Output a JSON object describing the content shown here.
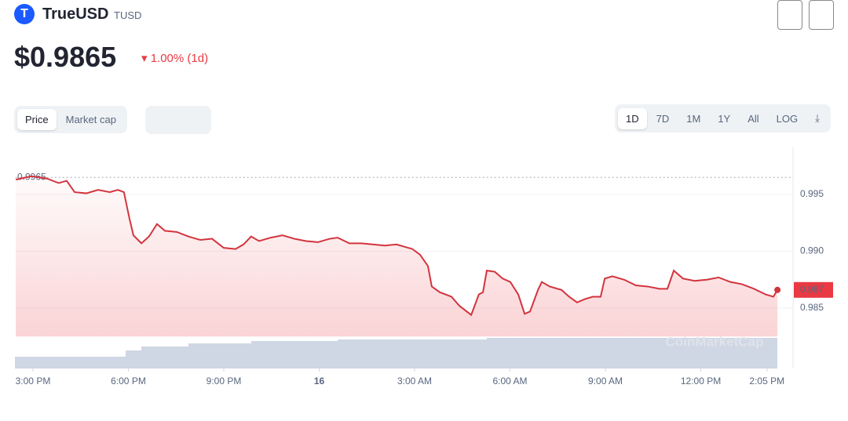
{
  "header": {
    "name": "TrueUSD",
    "symbol": "TUSD",
    "price": "$0.9865",
    "change": "1.00% (1d)"
  },
  "controls": {
    "metric": [
      "Price",
      "Market cap"
    ],
    "ranges": [
      "1D",
      "7D",
      "1M",
      "1Y",
      "All"
    ],
    "log": "LOG"
  },
  "chart_data": {
    "type": "line",
    "color": "#d3343d",
    "watermark": "CoinMarketCap",
    "x": [
      -0.54,
      -0.05,
      0.44,
      0.81,
      1.06,
      1.31,
      1.68,
      2.05,
      2.42,
      2.67,
      2.86,
      3.04,
      3.16,
      3.41,
      3.65,
      3.9,
      4.15,
      4.52,
      4.89,
      5.26,
      5.63,
      6.0,
      6.37,
      6.62,
      6.86,
      7.11,
      7.48,
      7.85,
      8.22,
      8.59,
      8.96,
      9.33,
      9.58,
      9.95,
      10.32,
      10.69,
      11.06,
      11.43,
      11.68,
      11.93,
      12.17,
      12.42,
      12.54,
      12.79,
      13.16,
      13.41,
      13.78,
      14.02,
      14.15,
      14.27,
      14.52,
      14.77,
      15.01,
      15.26,
      15.46,
      15.63,
      15.88,
      16.0,
      16.25,
      16.62,
      16.86,
      17.11,
      17.36,
      17.6,
      17.85,
      17.98,
      18.22,
      18.59,
      18.96,
      19.33,
      19.7,
      19.95,
      20.15,
      20.44,
      20.81,
      21.19,
      21.56,
      21.93,
      22.3,
      22.67,
      23.04,
      23.28,
      23.41
    ],
    "values": [
      0.9963,
      0.9966,
      0.9964,
      0.996,
      0.9962,
      0.9952,
      0.9951,
      0.9954,
      0.9952,
      0.9954,
      0.9952,
      0.9928,
      0.9914,
      0.9907,
      0.9913,
      0.9924,
      0.9918,
      0.9917,
      0.9913,
      0.991,
      0.9911,
      0.9903,
      0.9902,
      0.9906,
      0.9913,
      0.9909,
      0.9912,
      0.9914,
      0.9911,
      0.9909,
      0.9908,
      0.9911,
      0.9912,
      0.9907,
      0.9907,
      0.9906,
      0.9905,
      0.9906,
      0.9904,
      0.9902,
      0.9897,
      0.9887,
      0.9869,
      0.9864,
      0.986,
      0.9852,
      0.9844,
      0.9862,
      0.9864,
      0.9883,
      0.9882,
      0.9876,
      0.9873,
      0.9862,
      0.9845,
      0.9847,
      0.9866,
      0.9873,
      0.9869,
      0.9866,
      0.986,
      0.9855,
      0.9858,
      0.986,
      0.986,
      0.9876,
      0.9878,
      0.9875,
      0.987,
      0.9869,
      0.9867,
      0.9867,
      0.9883,
      0.9876,
      0.9874,
      0.9875,
      0.9877,
      0.9873,
      0.9871,
      0.9867,
      0.9862,
      0.986,
      0.9866
    ],
    "xlim": [
      -0.55,
      23.9
    ],
    "ylim": [
      0.9825,
      0.9992
    ],
    "xticks": [
      {
        "value": 0,
        "label": "3:00 PM"
      },
      {
        "value": 3,
        "label": "6:00 PM"
      },
      {
        "value": 6,
        "label": "9:00 PM"
      },
      {
        "value": 9,
        "label": "16"
      },
      {
        "value": 12,
        "label": "3:00 AM"
      },
      {
        "value": 15,
        "label": "6:00 AM"
      },
      {
        "value": 18,
        "label": "9:00 AM"
      },
      {
        "value": 21,
        "label": "12:00 PM"
      },
      {
        "value": 23.08,
        "label": "2:05 PM"
      }
    ],
    "yticks": [
      0.985,
      {
        "value": 0.99,
        "label": "0.990"
      },
      0.995
    ],
    "open_line": {
      "value": 0.9965,
      "label": "0.9965"
    },
    "last_price": {
      "value": 0.9866,
      "label": "0.987"
    },
    "grid": true
  }
}
